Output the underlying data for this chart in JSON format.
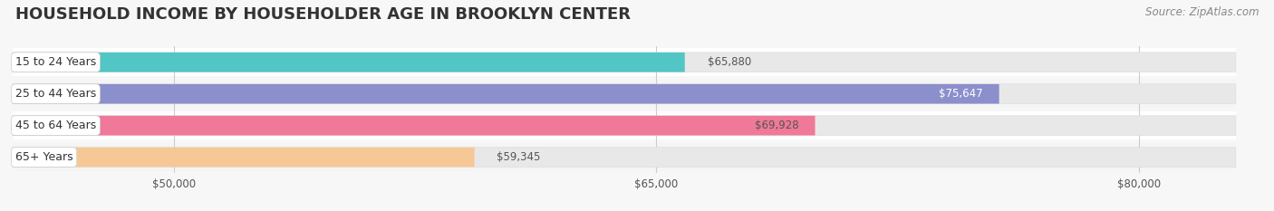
{
  "title": "HOUSEHOLD INCOME BY HOUSEHOLDER AGE IN BROOKLYN CENTER",
  "source": "Source: ZipAtlas.com",
  "categories": [
    "15 to 24 Years",
    "25 to 44 Years",
    "45 to 64 Years",
    "65+ Years"
  ],
  "values": [
    65880,
    75647,
    69928,
    59345
  ],
  "labels": [
    "$65,880",
    "$75,647",
    "$69,928",
    "$59,345"
  ],
  "bar_colors": [
    "#52C5C5",
    "#8B8FCC",
    "#F07898",
    "#F5C895"
  ],
  "bar_bg_color": "#E8E8E8",
  "xmin": 45000,
  "xmax": 83000,
  "xticks": [
    50000,
    65000,
    80000
  ],
  "xtick_labels": [
    "$50,000",
    "$65,000",
    "$80,000"
  ],
  "background_color": "#F7F7F7",
  "row_bg_colors": [
    "#FFFFFF",
    "#F5F5F5",
    "#FFFFFF",
    "#F5F5F5"
  ],
  "title_fontsize": 13,
  "source_fontsize": 8.5,
  "label_inside_threshold": 74000
}
